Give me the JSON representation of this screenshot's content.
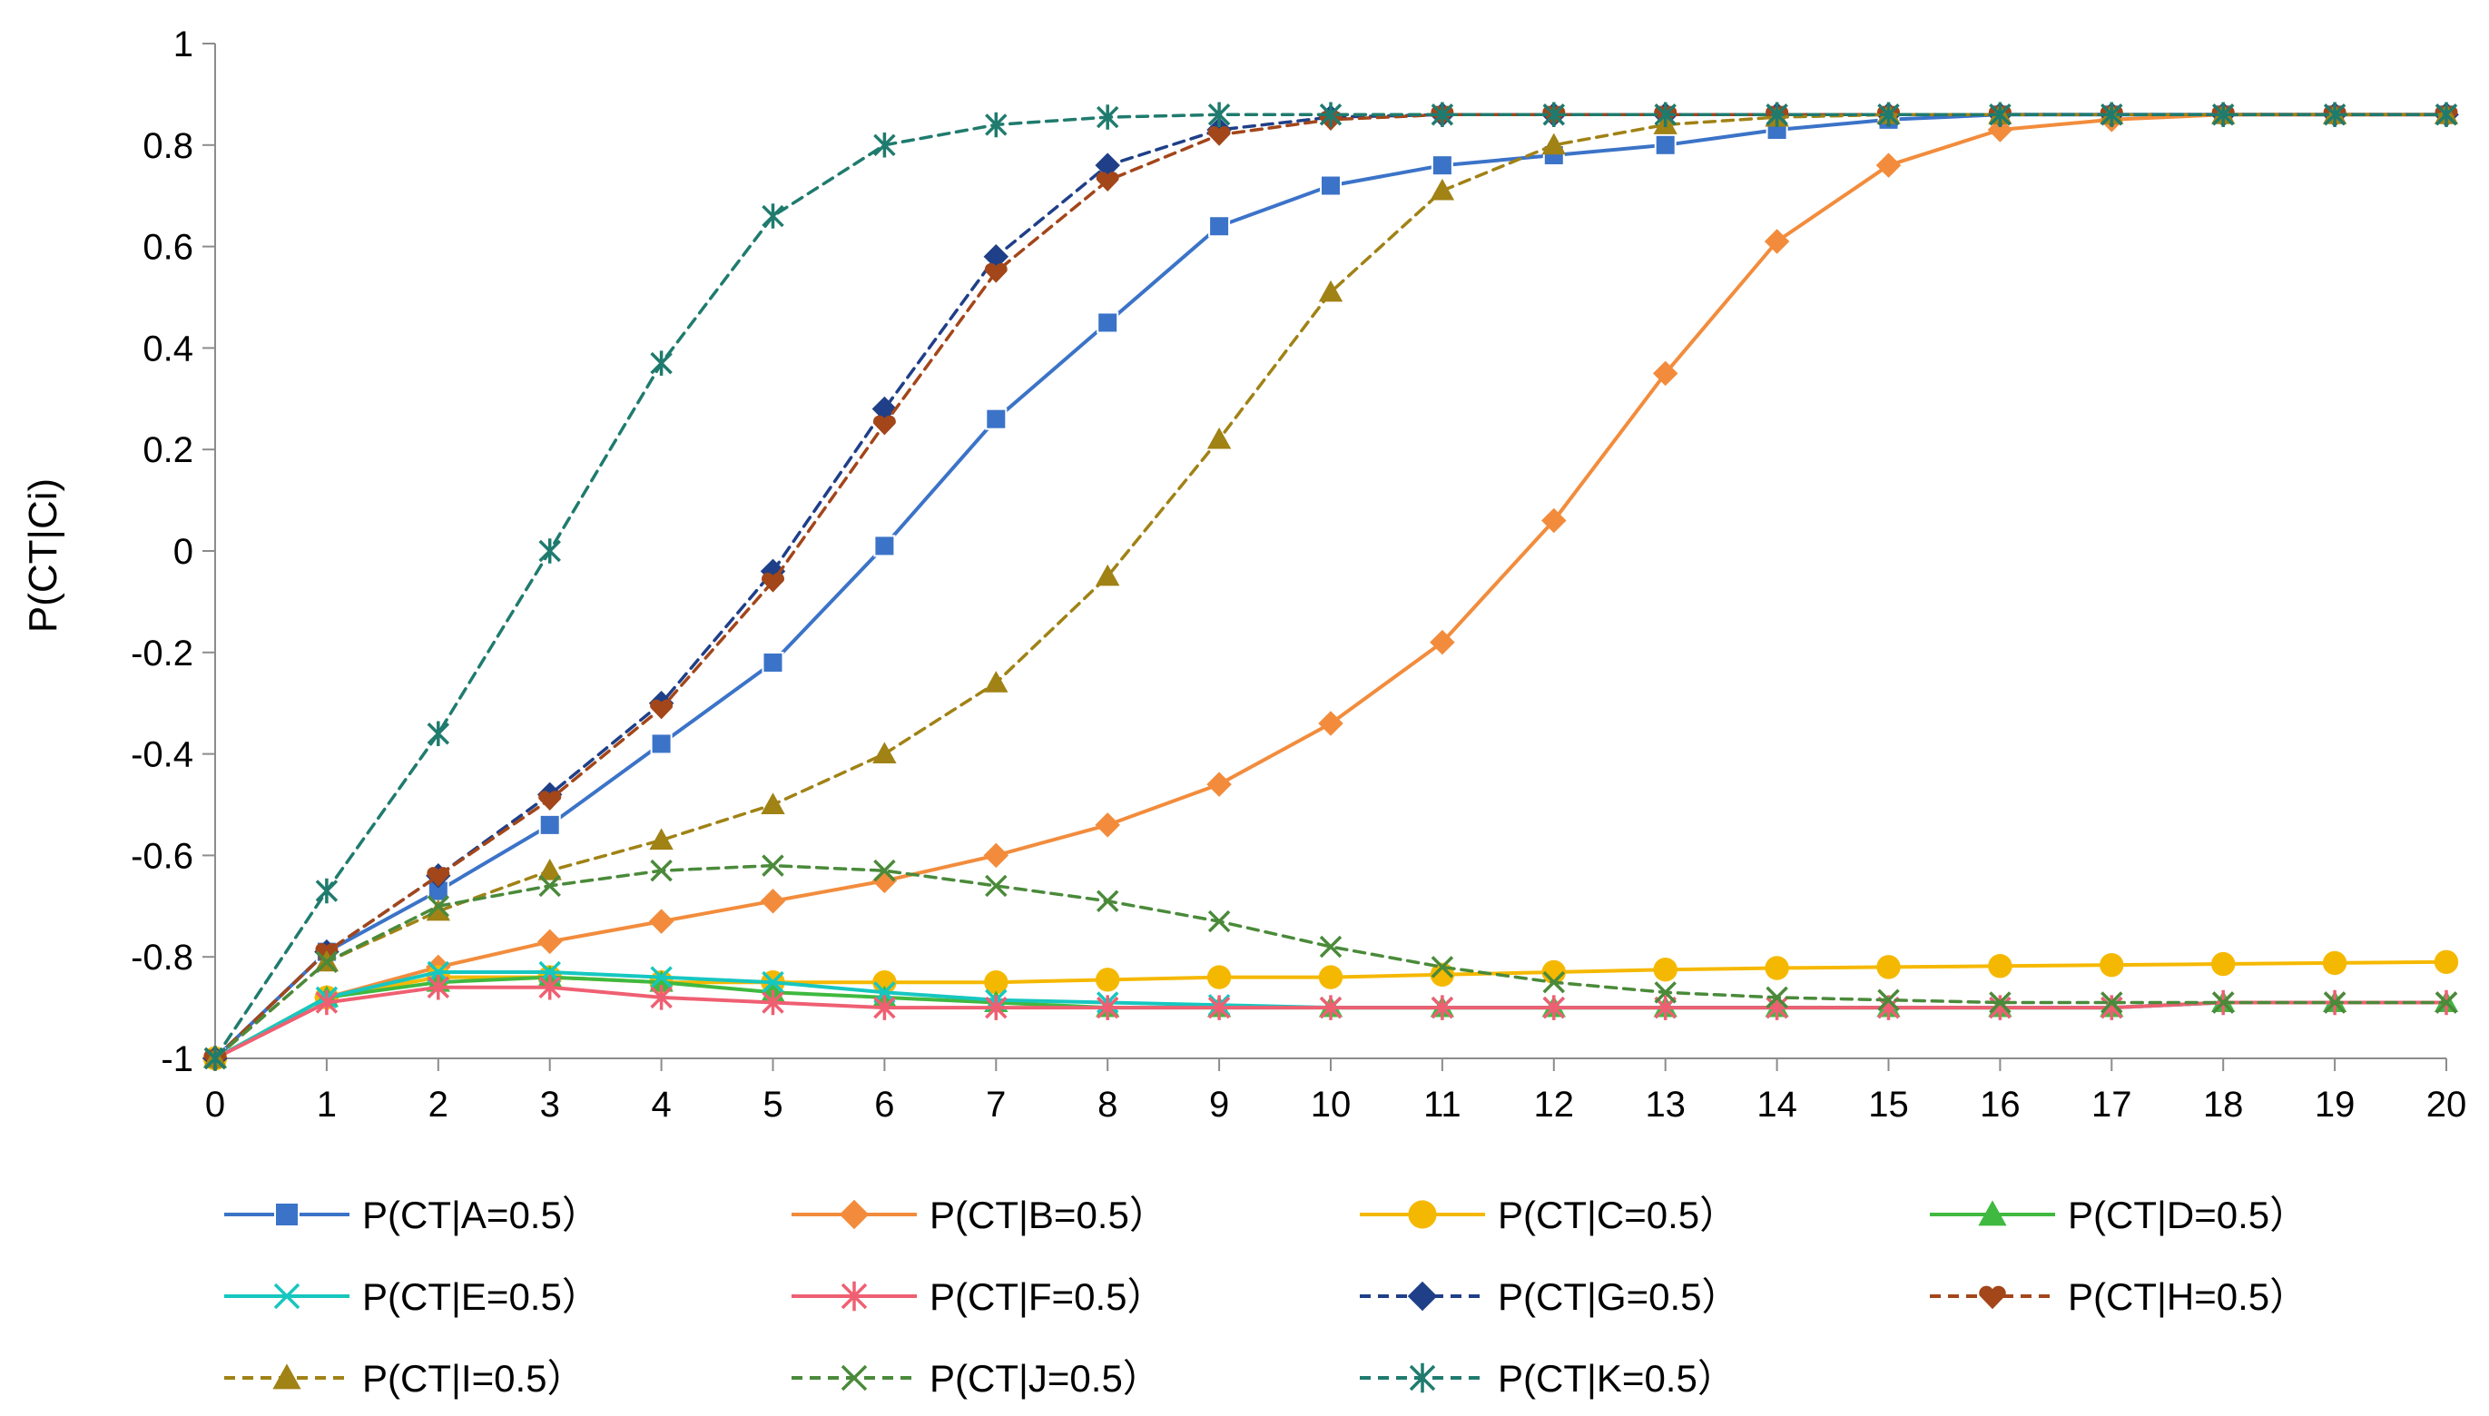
{
  "chart_data": {
    "type": "line",
    "title": "",
    "xlabel": "",
    "ylabel": "P(CT|Ci)",
    "x": [
      0,
      1,
      2,
      3,
      4,
      5,
      6,
      7,
      8,
      9,
      10,
      11,
      12,
      13,
      14,
      15,
      16,
      17,
      18,
      19,
      20
    ],
    "xlim": [
      0,
      20
    ],
    "ylim": [
      -1,
      1
    ],
    "xticks": [
      "0",
      "1",
      "2",
      "3",
      "4",
      "5",
      "6",
      "7",
      "8",
      "9",
      "10",
      "11",
      "12",
      "13",
      "14",
      "15",
      "16",
      "17",
      "18",
      "19",
      "20"
    ],
    "yticks": [
      {
        "value": 1,
        "label": "1"
      },
      {
        "value": 0.8,
        "label": "0.8"
      },
      {
        "value": 0.6,
        "label": "0.6"
      },
      {
        "value": 0.4,
        "label": "0.4"
      },
      {
        "value": 0.2,
        "label": "0.2"
      },
      {
        "value": 0,
        "label": "0"
      },
      {
        "value": -0.2,
        "label": "-0.2"
      },
      {
        "value": -0.4,
        "label": "-0.4"
      },
      {
        "value": -0.6,
        "label": "-0.6"
      },
      {
        "value": -0.8,
        "label": "-0.8"
      },
      {
        "value": -1,
        "label": "-1"
      }
    ],
    "grid": false,
    "legend_position": "bottom",
    "series": [
      {
        "name": "P(CT|A=0.5）",
        "color": "#3b73c8",
        "dash": "solid",
        "marker": "square",
        "values": [
          -1,
          -0.79,
          -0.67,
          -0.54,
          -0.38,
          -0.22,
          0.01,
          0.26,
          0.45,
          0.64,
          0.72,
          0.76,
          0.78,
          0.8,
          0.83,
          0.85,
          0.86,
          0.86,
          0.86,
          0.86,
          0.86
        ]
      },
      {
        "name": "P(CT|B=0.5）",
        "color": "#f28c3c",
        "dash": "solid",
        "marker": "diamond",
        "values": [
          -1,
          -0.88,
          -0.82,
          -0.77,
          -0.73,
          -0.69,
          -0.65,
          -0.6,
          -0.54,
          -0.46,
          -0.34,
          -0.18,
          0.06,
          0.35,
          0.61,
          0.76,
          0.83,
          0.85,
          0.86,
          0.86,
          0.86
        ]
      },
      {
        "name": "P(CT|C=0.5）",
        "color": "#f5b800",
        "dash": "solid",
        "marker": "circle",
        "values": [
          -1,
          -0.88,
          -0.84,
          -0.84,
          -0.85,
          -0.85,
          -0.85,
          -0.85,
          -0.845,
          -0.84,
          -0.84,
          -0.835,
          -0.83,
          -0.825,
          -0.822,
          -0.82,
          -0.818,
          -0.816,
          -0.814,
          -0.812,
          -0.81
        ]
      },
      {
        "name": "P(CT|D=0.5）",
        "color": "#3fb93f",
        "dash": "solid",
        "marker": "triangle",
        "values": [
          -1,
          -0.88,
          -0.85,
          -0.84,
          -0.85,
          -0.87,
          -0.88,
          -0.89,
          -0.9,
          -0.9,
          -0.9,
          -0.9,
          -0.9,
          -0.9,
          -0.9,
          -0.9,
          -0.9,
          -0.9,
          -0.89,
          -0.89,
          -0.89
        ]
      },
      {
        "name": "P(CT|E=0.5）",
        "color": "#16c7c0",
        "dash": "solid",
        "marker": "x",
        "values": [
          -1,
          -0.88,
          -0.83,
          -0.83,
          -0.84,
          -0.85,
          -0.87,
          -0.885,
          -0.89,
          -0.895,
          -0.9,
          -0.9,
          -0.9,
          -0.9,
          -0.9,
          -0.9,
          -0.9,
          -0.9,
          -0.89,
          -0.89,
          -0.89
        ]
      },
      {
        "name": "P(CT|F=0.5）",
        "color": "#ef5f72",
        "dash": "solid",
        "marker": "asterisk",
        "values": [
          -1,
          -0.89,
          -0.86,
          -0.86,
          -0.88,
          -0.89,
          -0.9,
          -0.9,
          -0.9,
          -0.9,
          -0.9,
          -0.9,
          -0.9,
          -0.9,
          -0.9,
          -0.9,
          -0.9,
          -0.9,
          -0.89,
          -0.89,
          -0.89
        ]
      },
      {
        "name": "P(CT|G=0.5）",
        "color": "#1f3f88",
        "dash": "dashed",
        "marker": "diamond",
        "values": [
          -1,
          -0.79,
          -0.64,
          -0.48,
          -0.3,
          -0.04,
          0.28,
          0.58,
          0.76,
          0.83,
          0.855,
          0.86,
          0.86,
          0.86,
          0.86,
          0.86,
          0.86,
          0.86,
          0.86,
          0.86,
          0.86
        ]
      },
      {
        "name": "P(CT|H=0.5）",
        "color": "#a3461a",
        "dash": "dashed",
        "marker": "heart",
        "values": [
          -1,
          -0.79,
          -0.64,
          -0.49,
          -0.31,
          -0.06,
          0.25,
          0.55,
          0.73,
          0.82,
          0.85,
          0.86,
          0.86,
          0.86,
          0.86,
          0.86,
          0.86,
          0.86,
          0.86,
          0.86,
          0.86
        ]
      },
      {
        "name": "P(CT|I=0.5）",
        "color": "#a08215",
        "dash": "dashed",
        "marker": "triangle",
        "values": [
          -1,
          -0.81,
          -0.71,
          -0.63,
          -0.57,
          -0.5,
          -0.4,
          -0.26,
          -0.05,
          0.22,
          0.51,
          0.71,
          0.8,
          0.84,
          0.855,
          0.86,
          0.86,
          0.86,
          0.86,
          0.86,
          0.86
        ]
      },
      {
        "name": "P(CT|J=0.5）",
        "color": "#4a8a3a",
        "dash": "dashed",
        "marker": "x",
        "values": [
          -1,
          -0.81,
          -0.7,
          -0.66,
          -0.63,
          -0.62,
          -0.63,
          -0.66,
          -0.69,
          -0.73,
          -0.78,
          -0.82,
          -0.85,
          -0.87,
          -0.88,
          -0.885,
          -0.89,
          -0.89,
          -0.89,
          -0.89,
          -0.89
        ]
      },
      {
        "name": "P(CT|K=0.5）",
        "color": "#1f7b6e",
        "dash": "dashed",
        "marker": "asterisk",
        "values": [
          -1,
          -0.67,
          -0.36,
          0.0,
          0.37,
          0.66,
          0.8,
          0.84,
          0.855,
          0.86,
          0.86,
          0.86,
          0.86,
          0.86,
          0.86,
          0.86,
          0.86,
          0.86,
          0.86,
          0.86,
          0.86
        ]
      }
    ]
  }
}
